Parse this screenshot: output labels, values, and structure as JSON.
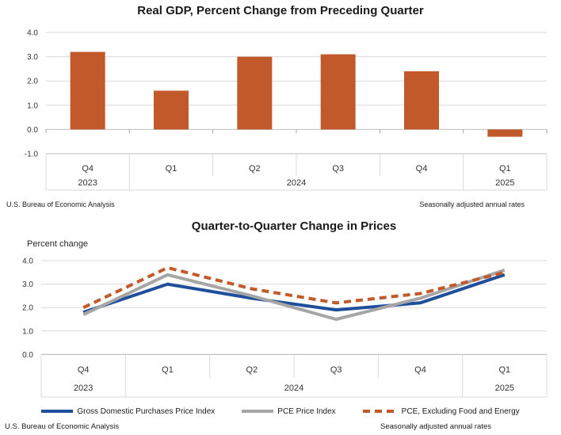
{
  "chart_data": [
    {
      "type": "bar",
      "title": "Real GDP, Percent Change from Preceding Quarter",
      "categories": [
        "Q4",
        "Q1",
        "Q2",
        "Q3",
        "Q4",
        "Q1"
      ],
      "year_groups": [
        {
          "label": "2023",
          "start": 0,
          "end": 0
        },
        {
          "label": "2024",
          "start": 1,
          "end": 4
        },
        {
          "label": "2025",
          "start": 5,
          "end": 5
        }
      ],
      "values": [
        3.2,
        1.6,
        3.0,
        3.1,
        2.4,
        -0.3
      ],
      "ylim": [
        -1.0,
        4.0
      ],
      "ytick_step": 1.0,
      "ytick_labels": [
        "4.0",
        "3.0",
        "2.0",
        "1.0",
        "0.0",
        "-1.0"
      ],
      "bar_color": "#C2592B",
      "grid": true,
      "footer_left": "U.S. Bureau of Economic Analysis",
      "footer_right": "Seasonally adjusted annual rates"
    },
    {
      "type": "line",
      "title": "Quarter-to-Quarter Change in Prices",
      "ylabel": "Percent change",
      "categories": [
        "Q4",
        "Q1",
        "Q2",
        "Q3",
        "Q4",
        "Q1"
      ],
      "year_groups": [
        {
          "label": "2023",
          "start": 0,
          "end": 0
        },
        {
          "label": "2024",
          "start": 1,
          "end": 4
        },
        {
          "label": "2025",
          "start": 5,
          "end": 5
        }
      ],
      "series": [
        {
          "name": "Gross Domestic Purchases Price Index",
          "color": "#1F4E9B",
          "style": "solid",
          "values": [
            1.8,
            3.0,
            2.4,
            1.9,
            2.2,
            3.4
          ]
        },
        {
          "name": "PCE Price Index",
          "color": "#A6A6A6",
          "style": "solid",
          "values": [
            1.7,
            3.4,
            2.5,
            1.5,
            2.4,
            3.6
          ]
        },
        {
          "name": "PCE, Excluding Food and Energy",
          "color": "#C2592B",
          "style": "dashed",
          "values": [
            2.0,
            3.7,
            2.8,
            2.2,
            2.6,
            3.5
          ]
        }
      ],
      "ylim": [
        0.0,
        4.0
      ],
      "ytick_step": 1.0,
      "ytick_labels": [
        "4.0",
        "3.0",
        "2.0",
        "1.0",
        "0.0"
      ],
      "grid": true,
      "legend_position": "bottom",
      "footer_left": "U.S. Bureau of Economic Analysis",
      "footer_right": "Seasonally adjusted annual rates"
    }
  ],
  "colors": {
    "grid": "#D9D9D9",
    "axis_line": "#BFBFBF",
    "tick": "#A6A6A6",
    "axis_text": "#333333",
    "title_text": "#1A1A1A"
  }
}
